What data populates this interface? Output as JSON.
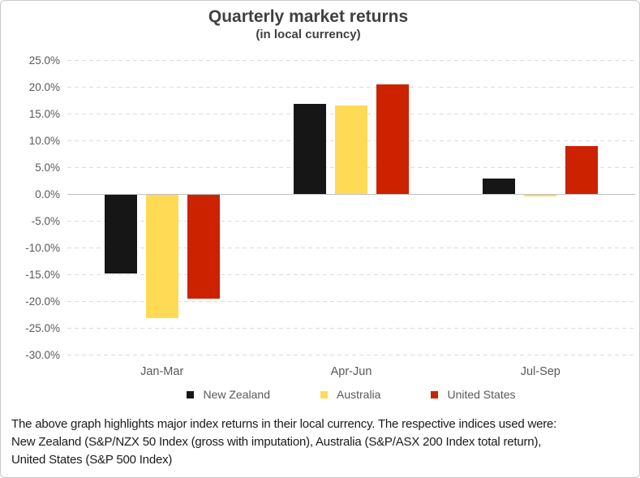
{
  "title": {
    "text": "Quarterly market returns",
    "subtitle": "(in local currency)"
  },
  "chart_data": {
    "type": "bar",
    "title": "Quarterly market returns",
    "subtitle": "(in local currency)",
    "unit": "percent",
    "categories": [
      "Jan-Mar",
      "Apr-Jun",
      "Jul-Sep"
    ],
    "series": [
      {
        "name": "New Zealand",
        "color": "#161616",
        "values": [
          -14.8,
          16.9,
          2.9
        ]
      },
      {
        "name": "Australia",
        "color": "#FFDB55",
        "values": [
          -23.1,
          16.5,
          -0.4
        ]
      },
      {
        "name": "United States",
        "color": "#CC2200",
        "values": [
          -19.6,
          20.5,
          8.9
        ]
      }
    ],
    "xlabel": "",
    "ylabel": "",
    "ylim": [
      -30,
      25
    ],
    "y_tick_step": 5,
    "y_tick_labels": [
      "25.0%",
      "20.0%",
      "15.0%",
      "10.0%",
      "5.0%",
      "0.0%",
      "-5.0%",
      "-10.0%",
      "-15.0%",
      "-20.0%",
      "-25.0%",
      "-30.0%"
    ],
    "grid": "horizontal-dashed",
    "legend_position": "bottom"
  },
  "footer": {
    "lines": [
      "The above graph highlights major index returns in their local currency. The respective indices used were:",
      "New Zealand (S&P/NZX 50 Index (gross with imputation), Australia (S&P/ASX 200 Index total return),",
      "United States (S&P 500 Index)"
    ]
  },
  "colors": {
    "grid": "#DCDCDC",
    "zero_line": "#C0C0C0",
    "axis_text": "#595959",
    "title_text": "#404040",
    "footer_text": "#1A1A1A"
  }
}
